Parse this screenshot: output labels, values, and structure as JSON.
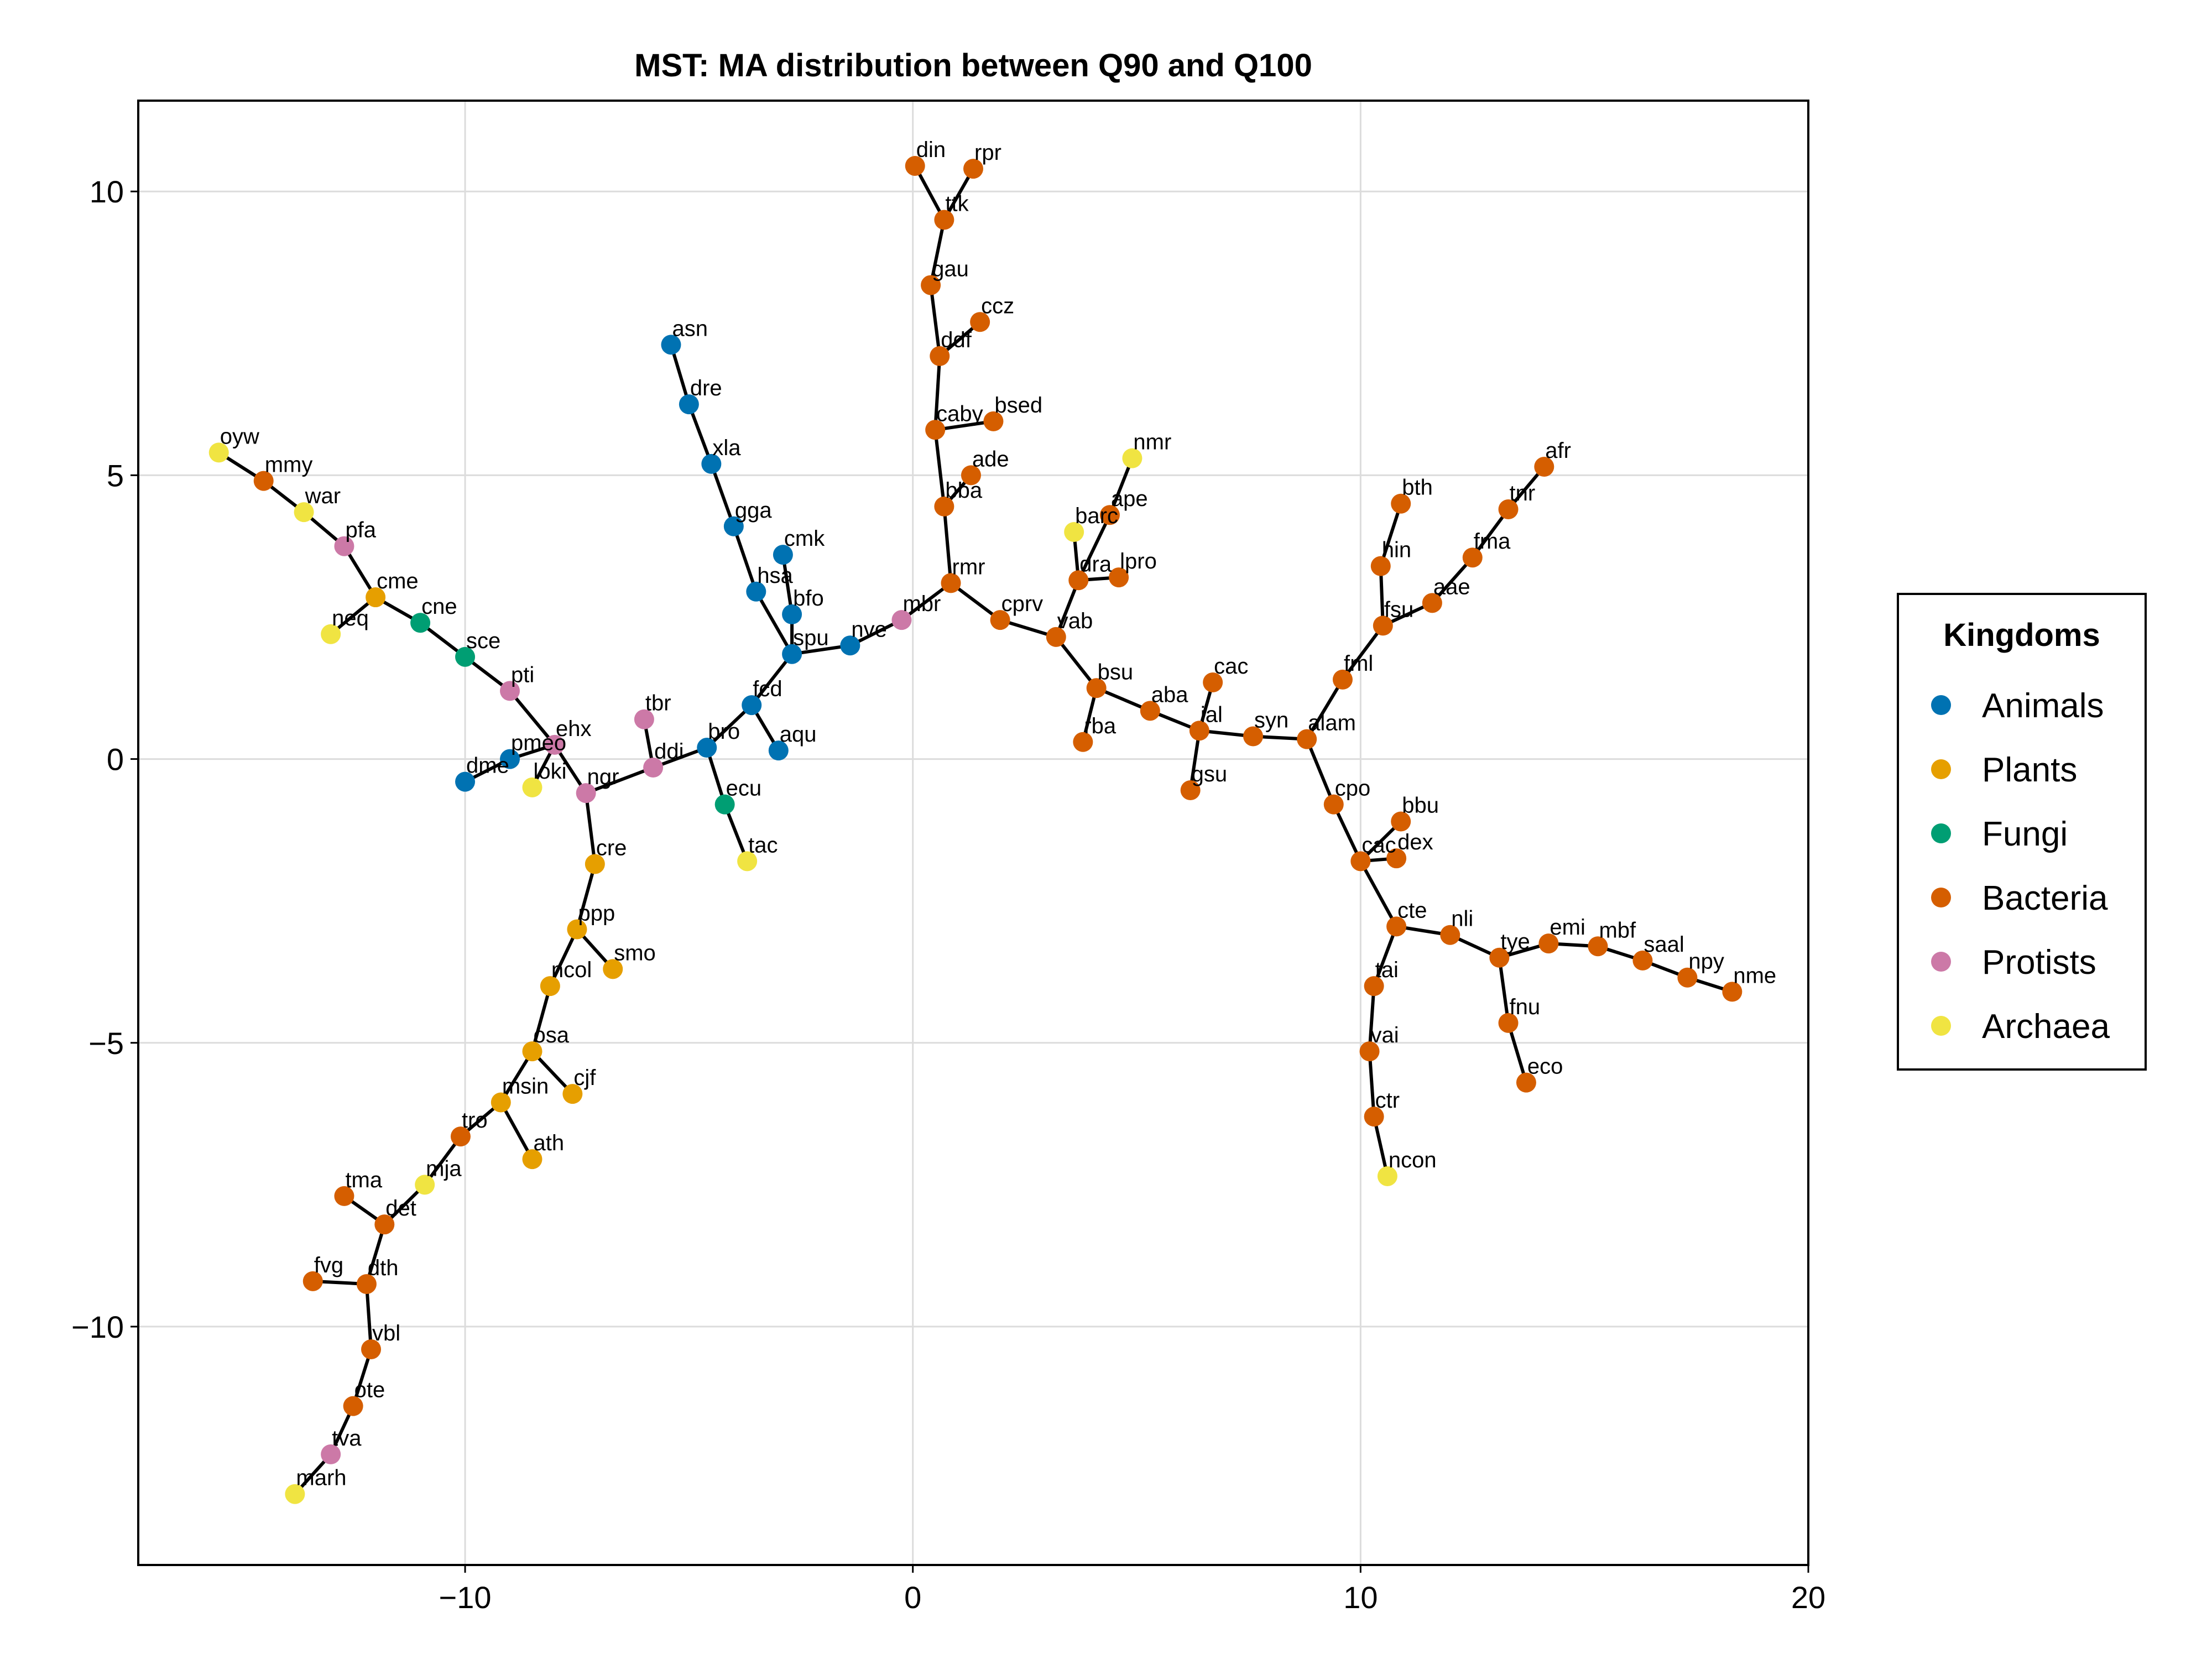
{
  "chart_data": {
    "type": "scatter",
    "title": "MST: MA distribution between Q90 and Q100",
    "xlabel": "",
    "ylabel": "",
    "xlim": [
      -17.3,
      20.0
    ],
    "ylim": [
      -14.2,
      11.6
    ],
    "x_ticks": [
      -10,
      0,
      10,
      20
    ],
    "y_ticks": [
      10,
      5,
      0,
      -5,
      -10
    ],
    "x_tick_labels": [
      "−10",
      "0",
      "10",
      "20"
    ],
    "y_tick_labels": [
      "10",
      "5",
      "0",
      "−5",
      "−10"
    ],
    "grid": true,
    "legend": {
      "title": "Kingdoms",
      "placement": "right",
      "entries": [
        {
          "label": "Animals",
          "color": "#0072b2"
        },
        {
          "label": "Plants",
          "color": "#e69f00"
        },
        {
          "label": "Fungi",
          "color": "#009e73"
        },
        {
          "label": "Bacteria",
          "color": "#d55e00"
        },
        {
          "label": "Protists",
          "color": "#cc79a7"
        },
        {
          "label": "Archaea",
          "color": "#f0e442"
        }
      ]
    },
    "nodes": [
      {
        "id": "oyw",
        "x": -15.5,
        "y": 5.4,
        "kingdom": "Archaea"
      },
      {
        "id": "mmy",
        "x": -14.5,
        "y": 4.9,
        "kingdom": "Bacteria"
      },
      {
        "id": "war",
        "x": -13.6,
        "y": 4.35,
        "kingdom": "Archaea"
      },
      {
        "id": "pfa",
        "x": -12.7,
        "y": 3.75,
        "kingdom": "Protists"
      },
      {
        "id": "cme",
        "x": -12.0,
        "y": 2.85,
        "kingdom": "Plants"
      },
      {
        "id": "neq",
        "x": -13.0,
        "y": 2.2,
        "kingdom": "Archaea"
      },
      {
        "id": "cne",
        "x": -11.0,
        "y": 2.4,
        "kingdom": "Fungi"
      },
      {
        "id": "sce",
        "x": -10.0,
        "y": 1.8,
        "kingdom": "Fungi"
      },
      {
        "id": "pti",
        "x": -9.0,
        "y": 1.2,
        "kingdom": "Protists"
      },
      {
        "id": "ehx",
        "x": -8.0,
        "y": 0.25,
        "kingdom": "Protists"
      },
      {
        "id": "pmeo",
        "x": -9.0,
        "y": 0.0,
        "kingdom": "Animals"
      },
      {
        "id": "dme",
        "x": -10.0,
        "y": -0.4,
        "kingdom": "Animals"
      },
      {
        "id": "loki",
        "x": -8.5,
        "y": -0.5,
        "kingdom": "Archaea"
      },
      {
        "id": "ngr",
        "x": -7.3,
        "y": -0.6,
        "kingdom": "Protists"
      },
      {
        "id": "ddi",
        "x": -5.8,
        "y": -0.15,
        "kingdom": "Protists"
      },
      {
        "id": "tbr",
        "x": -6.0,
        "y": 0.7,
        "kingdom": "Protists"
      },
      {
        "id": "bro",
        "x": -4.6,
        "y": 0.2,
        "kingdom": "Animals"
      },
      {
        "id": "ecu",
        "x": -4.2,
        "y": -0.8,
        "kingdom": "Fungi"
      },
      {
        "id": "tac",
        "x": -3.7,
        "y": -1.8,
        "kingdom": "Archaea"
      },
      {
        "id": "fcd",
        "x": -3.6,
        "y": 0.95,
        "kingdom": "Animals"
      },
      {
        "id": "aqu",
        "x": -3.0,
        "y": 0.15,
        "kingdom": "Animals"
      },
      {
        "id": "spu",
        "x": -2.7,
        "y": 1.85,
        "kingdom": "Animals"
      },
      {
        "id": "hsa",
        "x": -3.5,
        "y": 2.95,
        "kingdom": "Animals"
      },
      {
        "id": "bfo",
        "x": -2.7,
        "y": 2.55,
        "kingdom": "Animals"
      },
      {
        "id": "cmk",
        "x": -2.9,
        "y": 3.6,
        "kingdom": "Animals"
      },
      {
        "id": "gga",
        "x": -4.0,
        "y": 4.1,
        "kingdom": "Animals"
      },
      {
        "id": "xla",
        "x": -4.5,
        "y": 5.2,
        "kingdom": "Animals"
      },
      {
        "id": "dre",
        "x": -5.0,
        "y": 6.25,
        "kingdom": "Animals"
      },
      {
        "id": "asn",
        "x": -5.4,
        "y": 7.3,
        "kingdom": "Animals"
      },
      {
        "id": "nve",
        "x": -1.4,
        "y": 2.0,
        "kingdom": "Animals"
      },
      {
        "id": "mbr",
        "x": -0.25,
        "y": 2.45,
        "kingdom": "Protists"
      },
      {
        "id": "rmr",
        "x": 0.85,
        "y": 3.1,
        "kingdom": "Bacteria"
      },
      {
        "id": "bba",
        "x": 0.7,
        "y": 4.45,
        "kingdom": "Bacteria"
      },
      {
        "id": "ade",
        "x": 1.3,
        "y": 5.0,
        "kingdom": "Bacteria"
      },
      {
        "id": "caby",
        "x": 0.5,
        "y": 5.8,
        "kingdom": "Bacteria"
      },
      {
        "id": "bsed",
        "x": 1.8,
        "y": 5.95,
        "kingdom": "Bacteria"
      },
      {
        "id": "ddf",
        "x": 0.6,
        "y": 7.1,
        "kingdom": "Bacteria"
      },
      {
        "id": "ccz",
        "x": 1.5,
        "y": 7.7,
        "kingdom": "Bacteria"
      },
      {
        "id": "gau",
        "x": 0.4,
        "y": 8.35,
        "kingdom": "Bacteria"
      },
      {
        "id": "ttk",
        "x": 0.7,
        "y": 9.5,
        "kingdom": "Bacteria"
      },
      {
        "id": "din",
        "x": 0.05,
        "y": 10.45,
        "kingdom": "Bacteria"
      },
      {
        "id": "rpr",
        "x": 1.35,
        "y": 10.4,
        "kingdom": "Bacteria"
      },
      {
        "id": "cprv",
        "x": 1.95,
        "y": 2.45,
        "kingdom": "Bacteria"
      },
      {
        "id": "vab",
        "x": 3.2,
        "y": 2.15,
        "kingdom": "Bacteria"
      },
      {
        "id": "dra",
        "x": 3.7,
        "y": 3.15,
        "kingdom": "Bacteria"
      },
      {
        "id": "lpro",
        "x": 4.6,
        "y": 3.2,
        "kingdom": "Bacteria"
      },
      {
        "id": "barc",
        "x": 3.6,
        "y": 4.0,
        "kingdom": "Archaea"
      },
      {
        "id": "ape",
        "x": 4.4,
        "y": 4.3,
        "kingdom": "Bacteria"
      },
      {
        "id": "nmr",
        "x": 4.9,
        "y": 5.3,
        "kingdom": "Archaea"
      },
      {
        "id": "bsu",
        "x": 4.1,
        "y": 1.25,
        "kingdom": "Bacteria"
      },
      {
        "id": "rba",
        "x": 3.8,
        "y": 0.3,
        "kingdom": "Bacteria"
      },
      {
        "id": "aba",
        "x": 5.3,
        "y": 0.85,
        "kingdom": "Bacteria"
      },
      {
        "id": "cac",
        "x": 6.7,
        "y": 1.35,
        "kingdom": "Bacteria"
      },
      {
        "id": "ial",
        "x": 6.4,
        "y": 0.5,
        "kingdom": "Bacteria"
      },
      {
        "id": "gsu",
        "x": 6.2,
        "y": -0.55,
        "kingdom": "Bacteria"
      },
      {
        "id": "syn",
        "x": 7.6,
        "y": 0.4,
        "kingdom": "Bacteria"
      },
      {
        "id": "alam",
        "x": 8.8,
        "y": 0.35,
        "kingdom": "Bacteria"
      },
      {
        "id": "fml",
        "x": 9.6,
        "y": 1.4,
        "kingdom": "Bacteria"
      },
      {
        "id": "fsu",
        "x": 10.5,
        "y": 2.35,
        "kingdom": "Bacteria"
      },
      {
        "id": "hin",
        "x": 10.45,
        "y": 3.4,
        "kingdom": "Bacteria"
      },
      {
        "id": "bth",
        "x": 10.9,
        "y": 4.5,
        "kingdom": "Bacteria"
      },
      {
        "id": "aae",
        "x": 11.6,
        "y": 2.75,
        "kingdom": "Bacteria"
      },
      {
        "id": "fma",
        "x": 12.5,
        "y": 3.55,
        "kingdom": "Bacteria"
      },
      {
        "id": "tnr",
        "x": 13.3,
        "y": 4.4,
        "kingdom": "Bacteria"
      },
      {
        "id": "afr",
        "x": 14.1,
        "y": 5.15,
        "kingdom": "Bacteria"
      },
      {
        "id": "cpo",
        "x": 9.4,
        "y": -0.8,
        "kingdom": "Bacteria"
      },
      {
        "id": "cac2",
        "label": "cac",
        "x": 10.0,
        "y": -1.8,
        "kingdom": "Bacteria"
      },
      {
        "id": "bbu",
        "x": 10.9,
        "y": -1.1,
        "kingdom": "Bacteria"
      },
      {
        "id": "dex",
        "x": 10.8,
        "y": -1.75,
        "kingdom": "Bacteria"
      },
      {
        "id": "cte",
        "x": 10.8,
        "y": -2.95,
        "kingdom": "Bacteria"
      },
      {
        "id": "tai",
        "x": 10.3,
        "y": -4.0,
        "kingdom": "Bacteria"
      },
      {
        "id": "vai",
        "x": 10.2,
        "y": -5.15,
        "kingdom": "Bacteria"
      },
      {
        "id": "ctr",
        "x": 10.3,
        "y": -6.3,
        "kingdom": "Bacteria"
      },
      {
        "id": "ncon",
        "x": 10.6,
        "y": -7.35,
        "kingdom": "Archaea"
      },
      {
        "id": "nli",
        "x": 12.0,
        "y": -3.1,
        "kingdom": "Bacteria"
      },
      {
        "id": "tye",
        "x": 13.1,
        "y": -3.5,
        "kingdom": "Bacteria"
      },
      {
        "id": "fnu",
        "x": 13.3,
        "y": -4.65,
        "kingdom": "Bacteria"
      },
      {
        "id": "eco",
        "x": 13.7,
        "y": -5.7,
        "kingdom": "Bacteria"
      },
      {
        "id": "emi",
        "x": 14.2,
        "y": -3.25,
        "kingdom": "Bacteria"
      },
      {
        "id": "mbf",
        "x": 15.3,
        "y": -3.3,
        "kingdom": "Bacteria"
      },
      {
        "id": "saal",
        "x": 16.3,
        "y": -3.55,
        "kingdom": "Bacteria"
      },
      {
        "id": "npy",
        "x": 17.3,
        "y": -3.85,
        "kingdom": "Bacteria"
      },
      {
        "id": "nme",
        "x": 18.3,
        "y": -4.1,
        "kingdom": "Bacteria"
      },
      {
        "id": "cre",
        "x": -7.1,
        "y": -1.85,
        "kingdom": "Plants"
      },
      {
        "id": "ppp",
        "x": -7.5,
        "y": -3.0,
        "kingdom": "Plants"
      },
      {
        "id": "smo",
        "x": -6.7,
        "y": -3.7,
        "kingdom": "Plants"
      },
      {
        "id": "ncol",
        "x": -8.1,
        "y": -4.0,
        "kingdom": "Plants"
      },
      {
        "id": "osa",
        "x": -8.5,
        "y": -5.15,
        "kingdom": "Plants"
      },
      {
        "id": "cjf",
        "x": -7.6,
        "y": -5.9,
        "kingdom": "Plants"
      },
      {
        "id": "msin",
        "x": -9.2,
        "y": -6.05,
        "kingdom": "Plants"
      },
      {
        "id": "ath",
        "x": -8.5,
        "y": -7.05,
        "kingdom": "Plants"
      },
      {
        "id": "tro",
        "x": -10.1,
        "y": -6.65,
        "kingdom": "Bacteria"
      },
      {
        "id": "mja",
        "x": -10.9,
        "y": -7.5,
        "kingdom": "Archaea"
      },
      {
        "id": "det",
        "x": -11.8,
        "y": -8.2,
        "kingdom": "Bacteria"
      },
      {
        "id": "tma",
        "x": -12.7,
        "y": -7.7,
        "kingdom": "Bacteria"
      },
      {
        "id": "dth",
        "x": -12.2,
        "y": -9.25,
        "kingdom": "Bacteria"
      },
      {
        "id": "fvg",
        "x": -13.4,
        "y": -9.2,
        "kingdom": "Bacteria"
      },
      {
        "id": "vbl",
        "x": -12.1,
        "y": -10.4,
        "kingdom": "Bacteria"
      },
      {
        "id": "ote",
        "x": -12.5,
        "y": -11.4,
        "kingdom": "Bacteria"
      },
      {
        "id": "tva",
        "x": -13.0,
        "y": -12.25,
        "kingdom": "Protists"
      },
      {
        "id": "marh",
        "x": -13.8,
        "y": -12.95,
        "kingdom": "Archaea"
      }
    ],
    "edges": [
      [
        "oyw",
        "mmy"
      ],
      [
        "mmy",
        "war"
      ],
      [
        "war",
        "pfa"
      ],
      [
        "pfa",
        "cme"
      ],
      [
        "cme",
        "neq"
      ],
      [
        "cme",
        "cne"
      ],
      [
        "cne",
        "sce"
      ],
      [
        "sce",
        "pti"
      ],
      [
        "pti",
        "ehx"
      ],
      [
        "ehx",
        "pmeo"
      ],
      [
        "pmeo",
        "dme"
      ],
      [
        "ehx",
        "loki"
      ],
      [
        "ehx",
        "ngr"
      ],
      [
        "ngr",
        "ddi"
      ],
      [
        "ddi",
        "tbr"
      ],
      [
        "ddi",
        "bro"
      ],
      [
        "bro",
        "ecu"
      ],
      [
        "ecu",
        "tac"
      ],
      [
        "bro",
        "fcd"
      ],
      [
        "fcd",
        "aqu"
      ],
      [
        "fcd",
        "spu"
      ],
      [
        "spu",
        "hsa"
      ],
      [
        "spu",
        "bfo"
      ],
      [
        "bfo",
        "cmk"
      ],
      [
        "hsa",
        "gga"
      ],
      [
        "gga",
        "xla"
      ],
      [
        "xla",
        "dre"
      ],
      [
        "dre",
        "asn"
      ],
      [
        "spu",
        "nve"
      ],
      [
        "nve",
        "mbr"
      ],
      [
        "mbr",
        "rmr"
      ],
      [
        "rmr",
        "bba"
      ],
      [
        "bba",
        "ade"
      ],
      [
        "bba",
        "caby"
      ],
      [
        "caby",
        "bsed"
      ],
      [
        "caby",
        "ddf"
      ],
      [
        "ddf",
        "ccz"
      ],
      [
        "ddf",
        "gau"
      ],
      [
        "gau",
        "ttk"
      ],
      [
        "ttk",
        "din"
      ],
      [
        "ttk",
        "rpr"
      ],
      [
        "rmr",
        "cprv"
      ],
      [
        "cprv",
        "vab"
      ],
      [
        "vab",
        "dra"
      ],
      [
        "dra",
        "lpro"
      ],
      [
        "dra",
        "barc"
      ],
      [
        "dra",
        "ape"
      ],
      [
        "ape",
        "nmr"
      ],
      [
        "vab",
        "bsu"
      ],
      [
        "bsu",
        "rba"
      ],
      [
        "bsu",
        "aba"
      ],
      [
        "aba",
        "ial"
      ],
      [
        "ial",
        "cac"
      ],
      [
        "ial",
        "gsu"
      ],
      [
        "ial",
        "syn"
      ],
      [
        "syn",
        "alam"
      ],
      [
        "alam",
        "fml"
      ],
      [
        "fml",
        "fsu"
      ],
      [
        "fsu",
        "hin"
      ],
      [
        "hin",
        "bth"
      ],
      [
        "fsu",
        "aae"
      ],
      [
        "aae",
        "fma"
      ],
      [
        "fma",
        "tnr"
      ],
      [
        "tnr",
        "afr"
      ],
      [
        "alam",
        "cpo"
      ],
      [
        "cpo",
        "cac2"
      ],
      [
        "cac2",
        "bbu"
      ],
      [
        "cac2",
        "dex"
      ],
      [
        "cac2",
        "cte"
      ],
      [
        "cte",
        "tai"
      ],
      [
        "tai",
        "vai"
      ],
      [
        "vai",
        "ctr"
      ],
      [
        "ctr",
        "ncon"
      ],
      [
        "cte",
        "nli"
      ],
      [
        "nli",
        "tye"
      ],
      [
        "tye",
        "fnu"
      ],
      [
        "fnu",
        "eco"
      ],
      [
        "tye",
        "emi"
      ],
      [
        "emi",
        "mbf"
      ],
      [
        "mbf",
        "saal"
      ],
      [
        "saal",
        "npy"
      ],
      [
        "npy",
        "nme"
      ],
      [
        "ngr",
        "cre"
      ],
      [
        "cre",
        "ppp"
      ],
      [
        "ppp",
        "smo"
      ],
      [
        "ppp",
        "ncol"
      ],
      [
        "ncol",
        "osa"
      ],
      [
        "osa",
        "cjf"
      ],
      [
        "osa",
        "msin"
      ],
      [
        "msin",
        "ath"
      ],
      [
        "msin",
        "tro"
      ],
      [
        "tro",
        "mja"
      ],
      [
        "mja",
        "det"
      ],
      [
        "det",
        "tma"
      ],
      [
        "det",
        "dth"
      ],
      [
        "dth",
        "fvg"
      ],
      [
        "dth",
        "vbl"
      ],
      [
        "vbl",
        "ote"
      ],
      [
        "ote",
        "tva"
      ],
      [
        "tva",
        "marh"
      ]
    ]
  }
}
